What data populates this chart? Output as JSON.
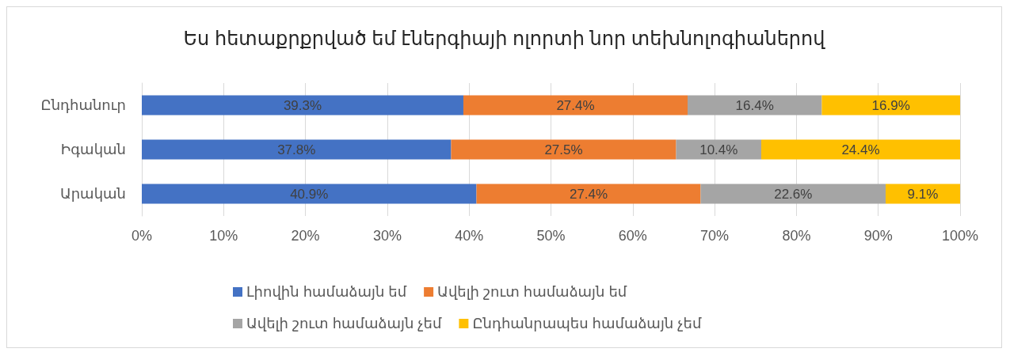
{
  "chart_data": {
    "type": "bar",
    "orientation": "horizontal",
    "stacked": true,
    "title": "Ես հետաքրքրված եմ էներգիայի ոլորտի նոր տեխնոլոգիաներով",
    "categories": [
      "Ընդհանուր",
      "Իգական",
      "Արական"
    ],
    "series": [
      {
        "name": "Լիովին համաձայն եմ",
        "color": "#4472c4",
        "values": [
          39.3,
          37.8,
          40.9
        ],
        "value_labels": [
          "39.3%",
          "37.8%",
          "40.9%"
        ]
      },
      {
        "name": "Ավելի շուտ համաձայն եմ",
        "color": "#ed7d31",
        "values": [
          27.4,
          27.5,
          27.4
        ],
        "value_labels": [
          "27.4%",
          "27.5%",
          "27.4%"
        ]
      },
      {
        "name": "Ավելի շուտ համաձայն չեմ",
        "color": "#a5a5a5",
        "values": [
          16.4,
          10.4,
          22.6
        ],
        "value_labels": [
          "16.4%",
          "10.4%",
          "22.6%"
        ]
      },
      {
        "name": "Ընդհանրապես համաձայն չեմ",
        "color": "#ffc000",
        "values": [
          16.9,
          24.4,
          9.1
        ],
        "value_labels": [
          "16.9%",
          "24.4%",
          "9.1%"
        ]
      }
    ],
    "xlim": [
      0,
      100
    ],
    "xticks": [
      {
        "value": 0,
        "label": "0%"
      },
      {
        "value": 10,
        "label": "10%"
      },
      {
        "value": 20,
        "label": "20%"
      },
      {
        "value": 30,
        "label": "30%"
      },
      {
        "value": 40,
        "label": "40%"
      },
      {
        "value": 50,
        "label": "50%"
      },
      {
        "value": 60,
        "label": "60%"
      },
      {
        "value": 70,
        "label": "70%"
      },
      {
        "value": 80,
        "label": "80%"
      },
      {
        "value": 90,
        "label": "90%"
      },
      {
        "value": 100,
        "label": "100%"
      }
    ],
    "grid": "x",
    "legend": "bottom"
  }
}
